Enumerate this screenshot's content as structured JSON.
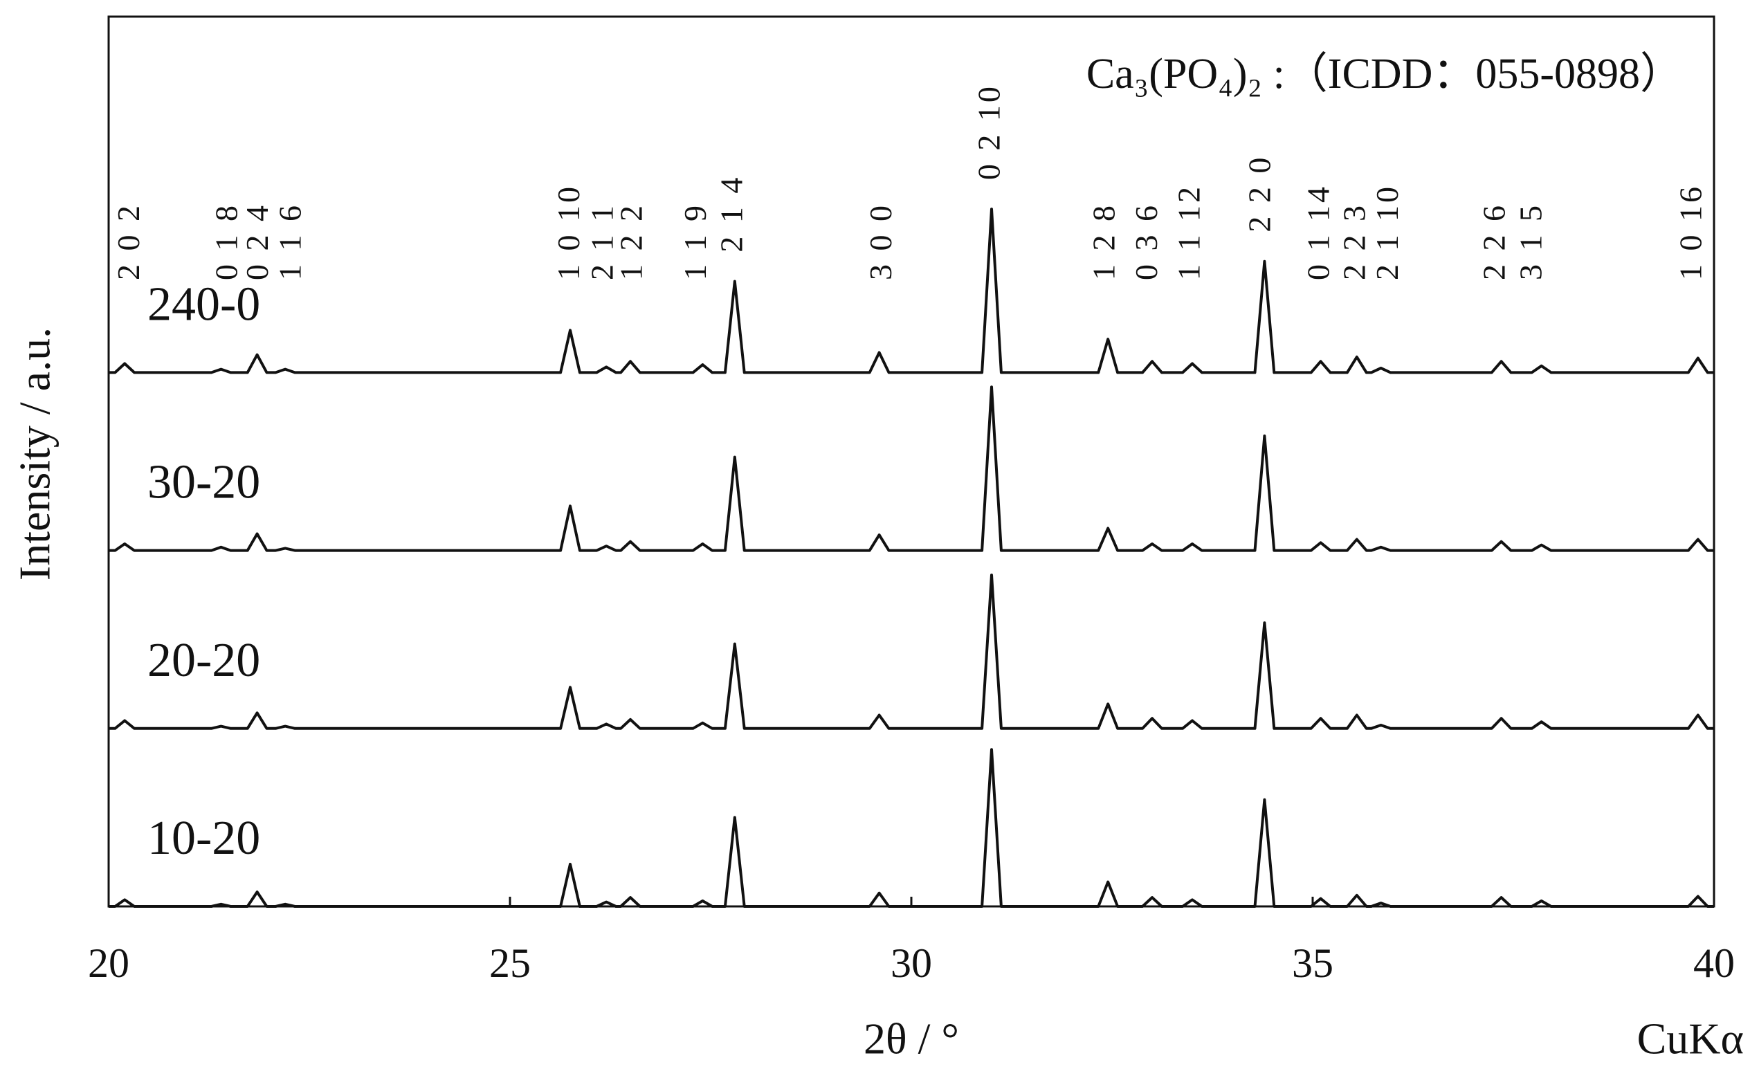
{
  "chart_data": {
    "type": "line",
    "x_label": "2θ / °",
    "y_label": "Intensity / a.u.",
    "reference": "Ca₃(PO₄)₂ :（ICDD：055-0898）",
    "corner_label": "CuKα",
    "xlim": [
      20,
      40
    ],
    "xticks": [
      20,
      25,
      30,
      35,
      40
    ],
    "ylim": [
      0,
      800
    ],
    "color": "#111111",
    "x": [
      20,
      20.08,
      20.2,
      20.32,
      21.28,
      21.4,
      21.52,
      21.73,
      21.85,
      21.97,
      22.08,
      22.2,
      22.32,
      25.63,
      25.75,
      25.87,
      26.08,
      26.2,
      26.32,
      26.38,
      26.5,
      26.62,
      27.28,
      27.4,
      27.52,
      27.68,
      27.8,
      27.92,
      29.48,
      29.6,
      29.72,
      30.88,
      31.0,
      31.12,
      32.33,
      32.45,
      32.57,
      32.88,
      33.0,
      33.12,
      33.38,
      33.5,
      33.62,
      34.28,
      34.4,
      34.52,
      34.98,
      35.1,
      35.22,
      35.43,
      35.55,
      35.67,
      35.73,
      35.85,
      35.97,
      37.23,
      37.35,
      37.47,
      37.73,
      37.85,
      37.97,
      39.68,
      39.8,
      39.92,
      40
    ],
    "series": [
      {
        "name": "240-0",
        "values": [
          0,
          0,
          8,
          0,
          0,
          3,
          0,
          0,
          16,
          0,
          0,
          3,
          0,
          0,
          38,
          0,
          0,
          5,
          0,
          0,
          10,
          0,
          0,
          7,
          0,
          0,
          82,
          0,
          0,
          18,
          0,
          0,
          147,
          0,
          0,
          30,
          0,
          0,
          10,
          0,
          0,
          8,
          0,
          0,
          100,
          0,
          0,
          10,
          0,
          0,
          14,
          0,
          0,
          4,
          0,
          0,
          10,
          0,
          0,
          6,
          0,
          0,
          13,
          0,
          0
        ]
      },
      {
        "name": "30-20",
        "values": [
          0,
          0,
          6,
          0,
          0,
          3,
          0,
          0,
          15,
          0,
          0,
          2,
          0,
          0,
          40,
          0,
          0,
          4,
          0,
          0,
          8,
          0,
          0,
          6,
          0,
          0,
          84,
          0,
          0,
          14,
          0,
          0,
          147,
          0,
          0,
          20,
          0,
          0,
          6,
          0,
          0,
          6,
          0,
          0,
          103,
          0,
          0,
          7,
          0,
          0,
          10,
          0,
          0,
          3,
          0,
          0,
          8,
          0,
          0,
          5,
          0,
          0,
          10,
          0,
          0
        ]
      },
      {
        "name": "20-20",
        "values": [
          0,
          0,
          7,
          0,
          0,
          2,
          0,
          0,
          14,
          0,
          0,
          2,
          0,
          0,
          37,
          0,
          0,
          4,
          0,
          0,
          8,
          0,
          0,
          5,
          0,
          0,
          76,
          0,
          0,
          12,
          0,
          0,
          138,
          0,
          0,
          22,
          0,
          0,
          9,
          0,
          0,
          7,
          0,
          0,
          95,
          0,
          0,
          9,
          0,
          0,
          12,
          0,
          0,
          3,
          0,
          0,
          9,
          0,
          0,
          6,
          0,
          0,
          12,
          0,
          0
        ]
      },
      {
        "name": "10-20",
        "values": [
          0,
          0,
          6,
          0,
          0,
          2,
          0,
          0,
          13,
          0,
          0,
          2,
          0,
          0,
          38,
          0,
          0,
          4,
          0,
          0,
          8,
          0,
          0,
          5,
          0,
          0,
          80,
          0,
          0,
          12,
          0,
          0,
          141,
          0,
          0,
          22,
          0,
          0,
          8,
          0,
          0,
          6,
          0,
          0,
          96,
          0,
          0,
          7,
          0,
          0,
          10,
          0,
          0,
          3,
          0,
          0,
          8,
          0,
          0,
          5,
          0,
          0,
          9,
          0,
          0
        ]
      }
    ],
    "annotations": [
      {
        "text": "2 0 2",
        "x": 20.29
      },
      {
        "text": "0 1 8",
        "x": 21.51
      },
      {
        "text": "0 2 4",
        "x": 21.89
      },
      {
        "text": "1 1 6",
        "x": 22.3
      },
      {
        "text": "1 0 10",
        "x": 25.77
      },
      {
        "text": "2 1 1",
        "x": 26.19
      },
      {
        "text": "1 2 2",
        "x": 26.55
      },
      {
        "text": "1 1 9",
        "x": 27.35
      },
      {
        "text": "2 1 4",
        "x": 27.8
      },
      {
        "text": "3 0 0",
        "x": 29.66
      },
      {
        "text": "0 2 10",
        "x": 31.01
      },
      {
        "text": "1 2 8",
        "x": 32.44
      },
      {
        "text": "0 3 6",
        "x": 32.97
      },
      {
        "text": "1 1 12",
        "x": 33.5
      },
      {
        "text": "2 2 0",
        "x": 34.38
      },
      {
        "text": "0 1 14",
        "x": 35.11
      },
      {
        "text": "2 2 3",
        "x": 35.56
      },
      {
        "text": "2 1 10",
        "x": 35.97
      },
      {
        "text": "2 2 6",
        "x": 37.3
      },
      {
        "text": "3 1 5",
        "x": 37.76
      },
      {
        "text": "1 0 16",
        "x": 39.75
      }
    ]
  }
}
